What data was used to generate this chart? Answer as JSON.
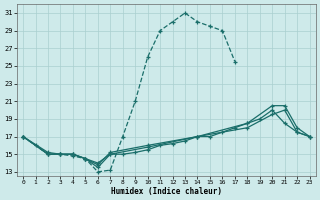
{
  "xlabel": "Humidex (Indice chaleur)",
  "background_color": "#ceeaea",
  "grid_color": "#aacfcf",
  "line_color": "#1a6e6a",
  "xlim": [
    -0.5,
    23.5
  ],
  "ylim": [
    12.5,
    32
  ],
  "xticks": [
    0,
    1,
    2,
    3,
    4,
    5,
    6,
    7,
    8,
    9,
    10,
    11,
    12,
    13,
    14,
    15,
    16,
    17,
    18,
    19,
    20,
    21,
    22,
    23
  ],
  "yticks": [
    13,
    15,
    17,
    19,
    21,
    23,
    25,
    27,
    29,
    31
  ],
  "line1_x": [
    0,
    1,
    2,
    3,
    4,
    5,
    6,
    7,
    8,
    9,
    10,
    11,
    12,
    13,
    14,
    15,
    16,
    17
  ],
  "line1_y": [
    17,
    16,
    15,
    15,
    14.8,
    14.5,
    13,
    13.2,
    17,
    21,
    26,
    29,
    30,
    31,
    30,
    29.5,
    29,
    25.5
  ],
  "line2_x": [
    0,
    2,
    3,
    4,
    5,
    6,
    7,
    8,
    9,
    10,
    11,
    12,
    13,
    14,
    15,
    16,
    17,
    18,
    19,
    20,
    21,
    22,
    23
  ],
  "line2_y": [
    17,
    15,
    15,
    15,
    14.5,
    14,
    15,
    15,
    15.2,
    15.5,
    16,
    16.2,
    16.5,
    17,
    17,
    17.5,
    18,
    18.5,
    19,
    20,
    18.5,
    17.5,
    17
  ],
  "line3_x": [
    0,
    2,
    3,
    4,
    5,
    6,
    7,
    10,
    14,
    18,
    20,
    21,
    22,
    23
  ],
  "line3_y": [
    17,
    15,
    15,
    15,
    14.5,
    13.8,
    15.2,
    16,
    17,
    18.5,
    20.5,
    20.5,
    18,
    17
  ],
  "line4_x": [
    0,
    2,
    3,
    4,
    5,
    6,
    7,
    10,
    14,
    18,
    20,
    21,
    22,
    23
  ],
  "line4_y": [
    17,
    15.2,
    15,
    15,
    14.5,
    13.5,
    15,
    15.8,
    17,
    18,
    19.5,
    20,
    17.5,
    17
  ]
}
